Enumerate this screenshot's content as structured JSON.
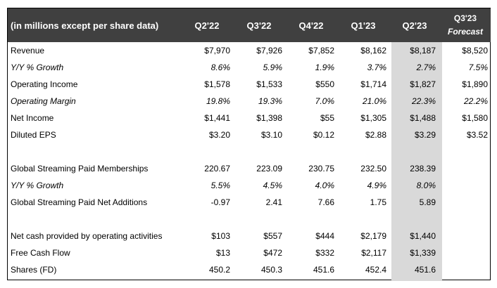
{
  "header": {
    "label": "(in millions except per share data)",
    "columns": [
      "Q2'22",
      "Q3'22",
      "Q4'22",
      "Q1'23",
      "Q2'23"
    ],
    "forecast_line1": "Q3'23",
    "forecast_line2": "Forecast"
  },
  "rows": [
    {
      "label": "Revenue",
      "italic": false,
      "values": [
        "$7,970",
        "$7,926",
        "$7,852",
        "$8,162",
        "$8,187",
        "$8,520"
      ]
    },
    {
      "label": "Y/Y % Growth",
      "italic": true,
      "values": [
        "8.6%",
        "5.9%",
        "1.9%",
        "3.7%",
        "2.7%",
        "7.5%"
      ]
    },
    {
      "label": "Operating Income",
      "italic": false,
      "values": [
        "$1,578",
        "$1,533",
        "$550",
        "$1,714",
        "$1,827",
        "$1,890"
      ]
    },
    {
      "label": "Operating Margin",
      "italic": true,
      "values": [
        "19.8%",
        "19.3%",
        "7.0%",
        "21.0%",
        "22.3%",
        "22.2%"
      ]
    },
    {
      "label": "Net Income",
      "italic": false,
      "values": [
        "$1,441",
        "$1,398",
        "$55",
        "$1,305",
        "$1,488",
        "$1,580"
      ]
    },
    {
      "label": "Diluted EPS",
      "italic": false,
      "values": [
        "$3.20",
        "$3.10",
        "$0.12",
        "$2.88",
        "$3.29",
        "$3.52"
      ]
    },
    {
      "blank": true
    },
    {
      "label": "Global Streaming Paid Memberships",
      "italic": false,
      "values": [
        "220.67",
        "223.09",
        "230.75",
        "232.50",
        "238.39",
        ""
      ]
    },
    {
      "label": "Y/Y % Growth",
      "italic": true,
      "values": [
        "5.5%",
        "4.5%",
        "4.0%",
        "4.9%",
        "8.0%",
        ""
      ]
    },
    {
      "label": "Global Streaming Paid Net Additions",
      "italic": false,
      "values": [
        "-0.97",
        "2.41",
        "7.66",
        "1.75",
        "5.89",
        ""
      ]
    },
    {
      "blank": true
    },
    {
      "label": "Net cash provided by operating activities",
      "italic": false,
      "values": [
        "$103",
        "$557",
        "$444",
        "$2,179",
        "$1,440",
        ""
      ]
    },
    {
      "label": "Free Cash Flow",
      "italic": false,
      "values": [
        "$13",
        "$472",
        "$332",
        "$2,117",
        "$1,339",
        ""
      ]
    },
    {
      "label": "Shares (FD)",
      "italic": false,
      "values": [
        "450.2",
        "450.3",
        "451.6",
        "452.4",
        "451.6",
        ""
      ]
    }
  ]
}
